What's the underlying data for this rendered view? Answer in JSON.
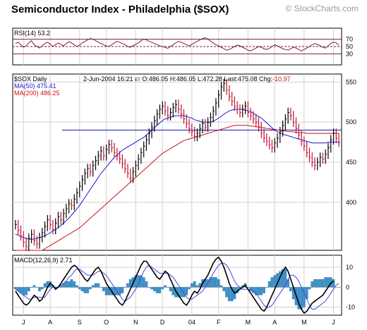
{
  "chart_data": {
    "type": "line",
    "title": "Semiconductor Index - Philadelphia ($SOX)",
    "watermark": "© StockCharts.com",
    "months": [
      "J",
      "A",
      "S",
      "O",
      "N",
      "D",
      "04",
      "F",
      "M",
      "A",
      "M",
      "J"
    ],
    "rsi": {
      "label": "RSI(14)",
      "last": "53.2",
      "ylim": [
        0,
        100
      ],
      "levels": [
        70,
        50,
        30
      ],
      "tick_labels": [
        "70",
        "50",
        "30"
      ],
      "values": [
        58,
        62,
        55,
        48,
        52,
        60,
        66,
        55,
        50,
        46,
        52,
        58,
        62,
        57,
        50,
        55,
        60,
        56,
        52,
        58,
        63,
        60,
        55,
        50,
        54,
        60,
        64,
        68,
        72,
        70,
        66,
        62,
        58,
        55,
        52,
        50,
        55,
        60,
        64,
        62,
        58,
        55,
        50,
        48,
        52,
        56,
        60,
        66,
        70,
        68,
        64,
        62,
        58,
        55,
        52,
        50,
        48,
        45,
        50,
        55,
        60,
        64,
        62,
        58,
        55,
        52,
        56,
        60,
        64,
        68,
        72,
        74,
        70,
        65,
        60,
        55,
        52,
        48,
        44,
        40,
        42,
        46,
        50,
        54,
        52,
        48,
        44,
        40,
        38,
        42,
        46,
        50,
        48,
        44,
        42,
        45,
        50,
        55,
        52,
        48,
        44,
        42,
        40,
        44,
        48,
        46,
        42,
        38,
        42,
        46,
        50,
        55,
        58,
        56,
        52,
        48,
        46,
        52,
        58,
        62,
        60,
        54
      ]
    },
    "price": {
      "label": "$SOX Daily",
      "date": "2-Jun-2004 16:21",
      "tz": "ET",
      "open": "O:486.05",
      "high": "H:486.05",
      "low": "L:472.28",
      "last": "Last:475.08",
      "chg_label": "Chg:",
      "chg_value": "-10.97",
      "ma50_label": "MA(50)",
      "ma50_value": "475.41",
      "ma200_label": "MA(200)",
      "ma200_value": "486.25",
      "ylim": [
        340,
        560
      ],
      "yticks": [
        550,
        500,
        450,
        400
      ],
      "hline": 490,
      "closes": [
        372,
        365,
        358,
        350,
        345,
        355,
        360,
        352,
        348,
        356,
        362,
        370,
        378,
        372,
        366,
        374,
        382,
        378,
        386,
        392,
        398,
        396,
        404,
        412,
        420,
        428,
        436,
        442,
        438,
        446,
        452,
        458,
        464,
        458,
        466,
        472,
        468,
        462,
        458,
        454,
        448,
        442,
        436,
        430,
        438,
        446,
        454,
        462,
        470,
        478,
        486,
        494,
        502,
        510,
        516,
        520,
        514,
        508,
        512,
        518,
        522,
        516,
        510,
        504,
        498,
        492,
        488,
        482,
        486,
        492,
        498,
        494,
        500,
        506,
        514,
        524,
        534,
        544,
        548,
        540,
        532,
        526,
        520,
        516,
        512,
        516,
        520,
        512,
        508,
        504,
        500,
        494,
        486,
        480,
        476,
        472,
        468,
        474,
        480,
        488,
        496,
        504,
        512,
        508,
        500,
        492,
        484,
        476,
        470,
        462,
        456,
        450,
        446,
        450,
        456,
        454,
        460,
        468,
        478,
        486,
        480,
        475
      ],
      "ma50": [
        360,
        359,
        357,
        356,
        355,
        354,
        354,
        354,
        355,
        356,
        357,
        358,
        360,
        362,
        364,
        366,
        368,
        371,
        374,
        377,
        380,
        384,
        388,
        392,
        396,
        401,
        406,
        411,
        416,
        421,
        426,
        431,
        436,
        440,
        444,
        448,
        452,
        456,
        459,
        462,
        465,
        467,
        469,
        471,
        473,
        475,
        477,
        479,
        481,
        484,
        487,
        490,
        493,
        496,
        499,
        502,
        504,
        505,
        506,
        507,
        508,
        508,
        508,
        508,
        507,
        506,
        505,
        503,
        502,
        501,
        500,
        500,
        500,
        500,
        501,
        503,
        505,
        507,
        510,
        512,
        514,
        515,
        516,
        516,
        516,
        516,
        515,
        514,
        513,
        511,
        509,
        507,
        505,
        502,
        499,
        496,
        493,
        490,
        488,
        486,
        485,
        484,
        483,
        482,
        481,
        480,
        479,
        478,
        477,
        476,
        475,
        474,
        474,
        474,
        474,
        474,
        474,
        475,
        475,
        475,
        475,
        475
      ],
      "ma200": [
        320,
        322,
        324,
        326,
        328,
        330,
        332,
        334,
        336,
        338,
        340,
        342,
        344,
        346,
        348,
        350,
        352,
        354,
        356,
        358,
        360,
        362,
        364,
        366,
        368,
        371,
        374,
        377,
        380,
        383,
        386,
        389,
        392,
        395,
        398,
        401,
        404,
        407,
        410,
        413,
        416,
        419,
        422,
        425,
        428,
        431,
        434,
        437,
        440,
        443,
        446,
        449,
        452,
        455,
        458,
        461,
        463,
        465,
        467,
        469,
        471,
        473,
        475,
        477,
        478,
        479,
        480,
        481,
        482,
        483,
        484,
        485,
        486,
        487,
        488,
        489,
        490,
        491,
        492,
        493,
        494,
        495,
        496,
        496,
        496,
        496,
        496,
        496,
        495,
        495,
        494,
        494,
        493,
        493,
        492,
        492,
        491,
        491,
        490,
        490,
        489,
        489,
        488,
        488,
        488,
        487,
        487,
        487,
        487,
        486,
        486,
        486,
        486,
        486,
        486,
        486,
        486,
        486,
        486,
        486,
        486,
        486
      ]
    },
    "macd": {
      "label": "MACD(12,26,9)",
      "last": "2.71",
      "ylim": [
        -14,
        16
      ],
      "yticks": [
        10,
        0,
        -10
      ],
      "macd": [
        -2,
        -4,
        -6,
        -8,
        -9,
        -8,
        -6,
        -4,
        -5,
        -7,
        -6,
        -3,
        0,
        2,
        1,
        -1,
        0,
        2,
        4,
        6,
        8,
        10,
        11,
        10,
        8,
        6,
        4,
        3,
        5,
        7,
        9,
        10,
        8,
        5,
        2,
        0,
        -2,
        -4,
        -6,
        -8,
        -9,
        -7,
        -4,
        -1,
        2,
        5,
        8,
        11,
        13,
        13,
        11,
        9,
        7,
        5,
        4,
        6,
        8,
        7,
        4,
        1,
        -2,
        -4,
        -6,
        -8,
        -9,
        -7,
        -4,
        -2,
        -3,
        -1,
        2,
        4,
        6,
        9,
        12,
        14,
        15,
        13,
        10,
        6,
        2,
        -1,
        -3,
        -2,
        -1,
        0,
        1,
        -1,
        -3,
        -5,
        -7,
        -9,
        -11,
        -12,
        -10,
        -7,
        -4,
        -1,
        2,
        5,
        8,
        10,
        8,
        4,
        0,
        -4,
        -8,
        -11,
        -13,
        -12,
        -10,
        -8,
        -7,
        -6,
        -5,
        -4,
        -2,
        0,
        2,
        3
      ],
      "signal": [
        -1,
        -2,
        -3,
        -4,
        -5,
        -6,
        -6,
        -5,
        -5,
        -5,
        -5,
        -5,
        -3,
        -1,
        0,
        0,
        0,
        1,
        2,
        3,
        5,
        6,
        8,
        9,
        9,
        8,
        7,
        6,
        6,
        6,
        7,
        8,
        8,
        7,
        6,
        4,
        2,
        0,
        -2,
        -4,
        -6,
        -7,
        -6,
        -5,
        -3,
        -1,
        2,
        5,
        8,
        10,
        11,
        10,
        9,
        8,
        7,
        7,
        7,
        7,
        6,
        5,
        3,
        1,
        -1,
        -3,
        -5,
        -6,
        -6,
        -5,
        -4,
        -3,
        -2,
        0,
        2,
        4,
        7,
        9,
        11,
        12,
        12,
        11,
        9,
        6,
        3,
        1,
        0,
        -1,
        -1,
        -1,
        -1,
        -2,
        -3,
        -5,
        -7,
        -9,
        -10,
        -10,
        -9,
        -7,
        -5,
        -3,
        -1,
        1,
        4,
        6,
        6,
        5,
        3,
        0,
        -3,
        -6,
        -9,
        -11,
        -11,
        -10,
        -9,
        -8,
        -7,
        -5,
        -3,
        -1,
        1,
        2
      ]
    }
  }
}
